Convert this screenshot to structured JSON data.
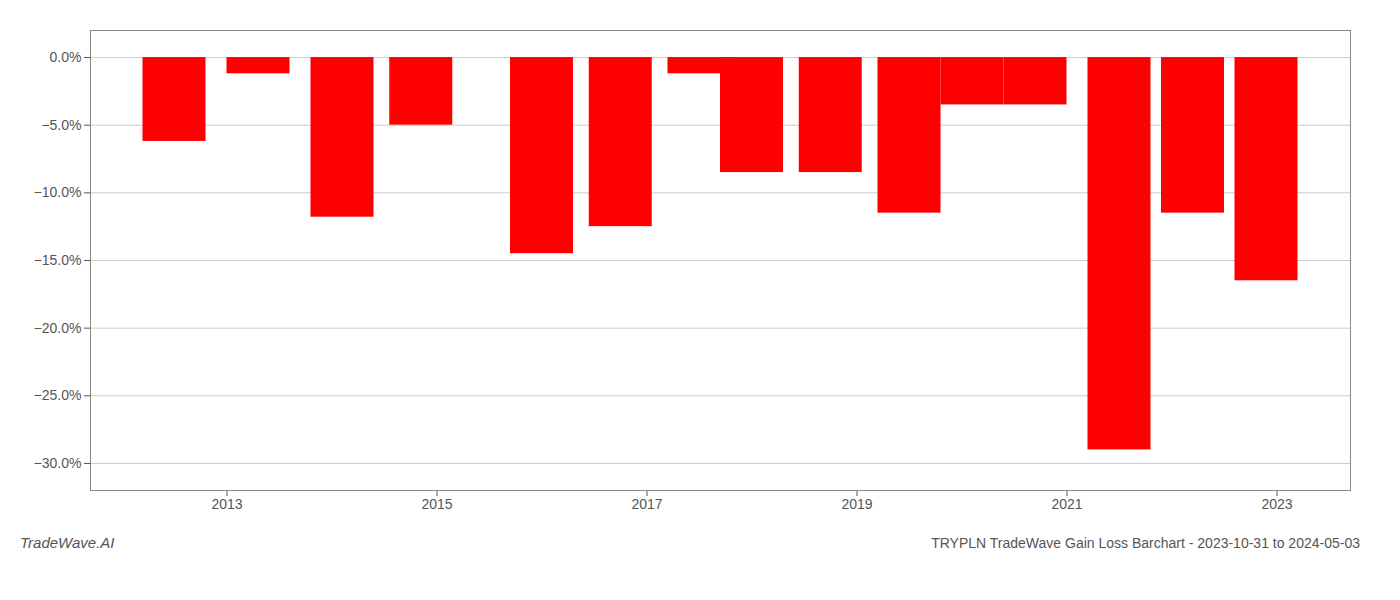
{
  "chart_data": {
    "type": "bar",
    "title": "TRYPLN TradeWave Gain Loss Barchart - 2023-10-31 to 2024-05-03",
    "annotations": [
      "TradeWave.AI"
    ],
    "x": [
      2012.5,
      2013.3,
      2014.1,
      2014.85,
      2016.0,
      2016.75,
      2017.5,
      2018.0,
      2018.75,
      2019.5,
      2020.1,
      2020.7,
      2021.5,
      2022.2,
      2022.9
    ],
    "values": [
      -6.2,
      -1.2,
      -11.8,
      -5.0,
      -14.5,
      -12.5,
      -1.2,
      -8.5,
      -8.5,
      -11.5,
      -3.5,
      -3.5,
      -29.0,
      -11.5,
      -16.5
    ],
    "color": "#ff0000",
    "xlim": [
      2011.7,
      2023.7
    ],
    "xticks": [
      2013,
      2015,
      2017,
      2019,
      2021,
      2023
    ],
    "ylim": [
      -32,
      2
    ],
    "yticks": [
      {
        "value": 0.0,
        "label": "0.0%"
      },
      {
        "value": -5.0,
        "label": "−5.0%"
      },
      {
        "value": -10.0,
        "label": "−10.0%"
      },
      {
        "value": -15.0,
        "label": "−15.0%"
      },
      {
        "value": -20.0,
        "label": "−20.0%"
      },
      {
        "value": -25.0,
        "label": "−25.0%"
      },
      {
        "value": -30.0,
        "label": "−30.0%"
      }
    ],
    "grid": true
  }
}
